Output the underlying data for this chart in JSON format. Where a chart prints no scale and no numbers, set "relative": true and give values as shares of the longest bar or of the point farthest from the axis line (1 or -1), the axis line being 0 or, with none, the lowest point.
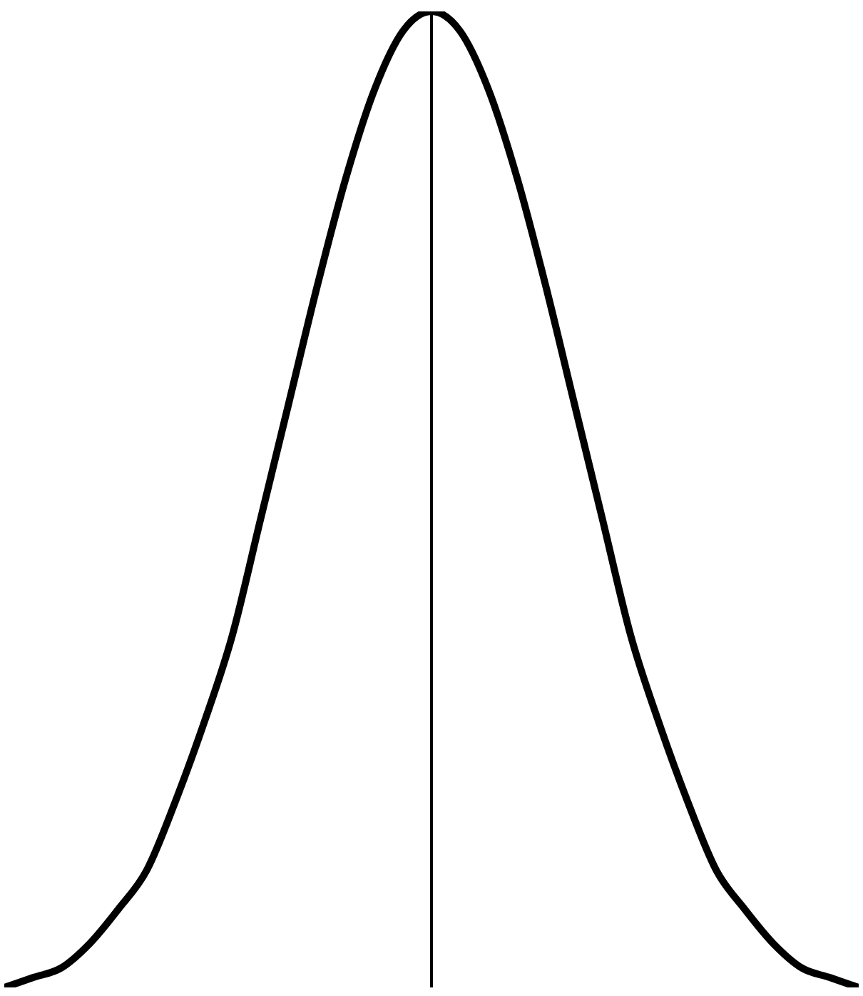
{
  "chart_data": {
    "type": "line",
    "relative": true,
    "categories": [
      null,
      null,
      null,
      null,
      null,
      null,
      null,
      null,
      null,
      null,
      null,
      null,
      null,
      null,
      null,
      null,
      null,
      null,
      null,
      null,
      null,
      null,
      null,
      null,
      null,
      null,
      null,
      null,
      null,
      null,
      null
    ],
    "series": [
      {
        "color": "#000000",
        "values": [
          0,
          0.01,
          0.02,
          0.045,
          0.08,
          0.12,
          0.19,
          0.27,
          0.36,
          0.48,
          0.6,
          0.72,
          0.83,
          0.92,
          0.98,
          1,
          0.98,
          0.92,
          0.83,
          0.72,
          0.6,
          0.48,
          0.36,
          0.27,
          0.19,
          0.12,
          0.08,
          0.045,
          0.02,
          0.01,
          0
        ]
      }
    ],
    "marker": "none",
    "line_style": "solid",
    "grid": false,
    "legend": false
  }
}
